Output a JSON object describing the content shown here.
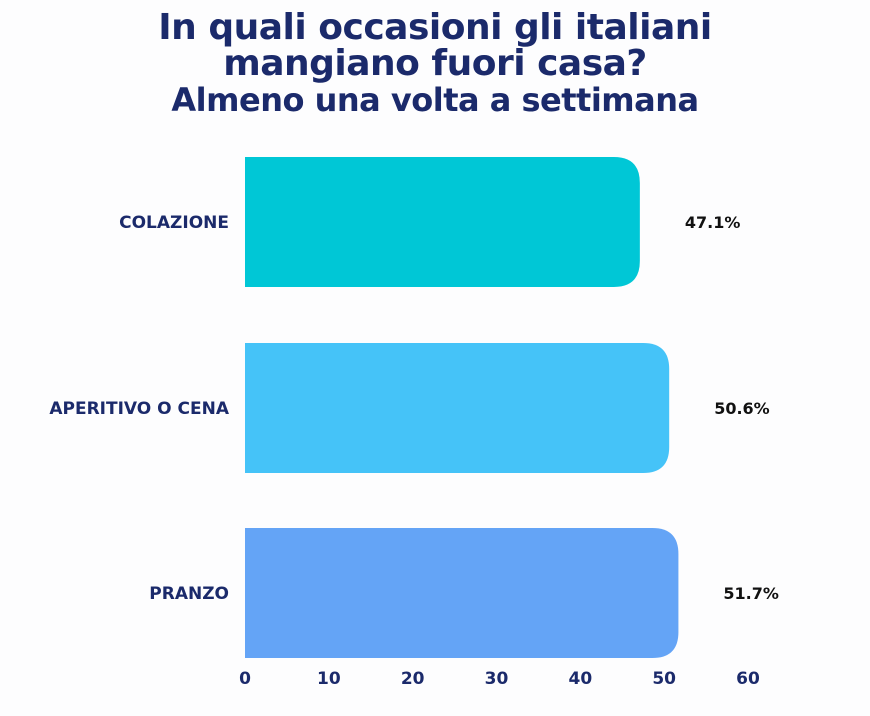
{
  "chart_data": {
    "type": "bar",
    "orientation": "horizontal",
    "title": [
      "In quali occasioni gli italiani",
      "mangiano fuori casa?",
      "Almeno una volta a settimana"
    ],
    "categories": [
      "COLAZIONE",
      "APERITIVO O CENA",
      "PRANZO"
    ],
    "values": [
      47.1,
      50.6,
      51.7
    ],
    "value_labels": [
      "47.1%",
      "50.6%",
      "51.7%"
    ],
    "colors": [
      "#00c7d6",
      "#45c3f8",
      "#64a4f6"
    ],
    "xlim": [
      0,
      60
    ],
    "xticks": [
      "0",
      "10",
      "20",
      "30",
      "40",
      "50",
      "60"
    ],
    "grid": false,
    "legend": "none"
  }
}
